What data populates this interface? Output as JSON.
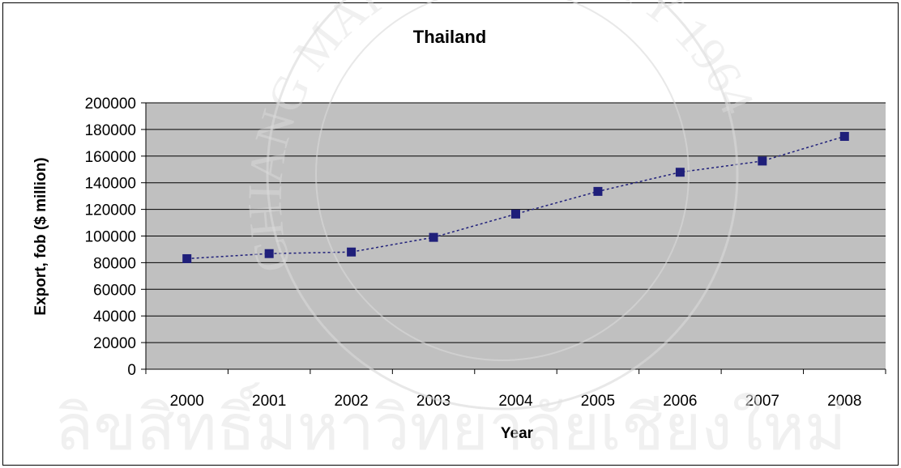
{
  "chart_data": {
    "type": "line",
    "title": "Thailand",
    "xlabel": "Year",
    "ylabel": "Export, fob ($ million)",
    "categories": [
      "2000",
      "2001",
      "2002",
      "2003",
      "2004",
      "2005",
      "2006",
      "2007",
      "2008"
    ],
    "series": [
      {
        "values": [
          83000,
          86800,
          88000,
          99000,
          116500,
          133500,
          147900,
          156300,
          174800
        ]
      }
    ],
    "ylim": [
      0,
      200000
    ],
    "yticks": [
      0,
      20000,
      40000,
      60000,
      80000,
      100000,
      120000,
      140000,
      160000,
      180000,
      200000
    ],
    "grid": true,
    "legend": "none",
    "colors": {
      "plot_background": "#c0c0c0",
      "series": "#1f1f7a",
      "gridline": "#000000"
    }
  },
  "watermark": {
    "ring_text": "CHIANG MAI UNIVERSITY 1964",
    "bottom_text": "ลิขสิทธิ์มหาวิทยาลัยเชียงใหม่"
  }
}
